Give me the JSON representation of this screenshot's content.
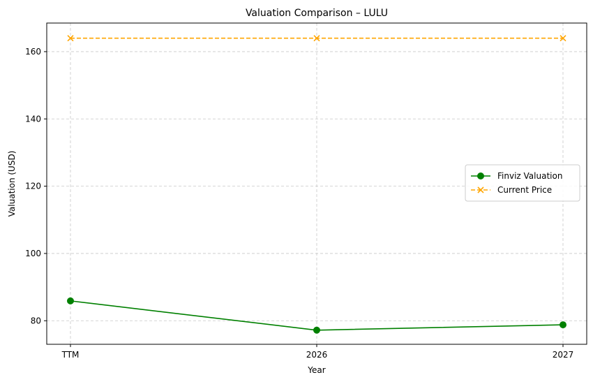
{
  "chart_data": {
    "type": "line",
    "title": "Valuation Comparison – LULU",
    "xlabel": "Year",
    "ylabel": "Valuation (USD)",
    "categories": [
      "TTM",
      "2026",
      "2027"
    ],
    "ylim": [
      73,
      168.5
    ],
    "yticks": [
      80,
      100,
      120,
      140,
      160
    ],
    "grid": true,
    "legend_position": "center-right",
    "series": [
      {
        "name": "Finviz Valuation",
        "values": [
          85.9,
          77.2,
          78.8
        ],
        "color": "#008000",
        "line_style": "solid",
        "marker": "circle"
      },
      {
        "name": "Current Price",
        "values": [
          164.0,
          164.0,
          164.0
        ],
        "color": "#ffa500",
        "line_style": "dashed",
        "marker": "x"
      }
    ]
  }
}
